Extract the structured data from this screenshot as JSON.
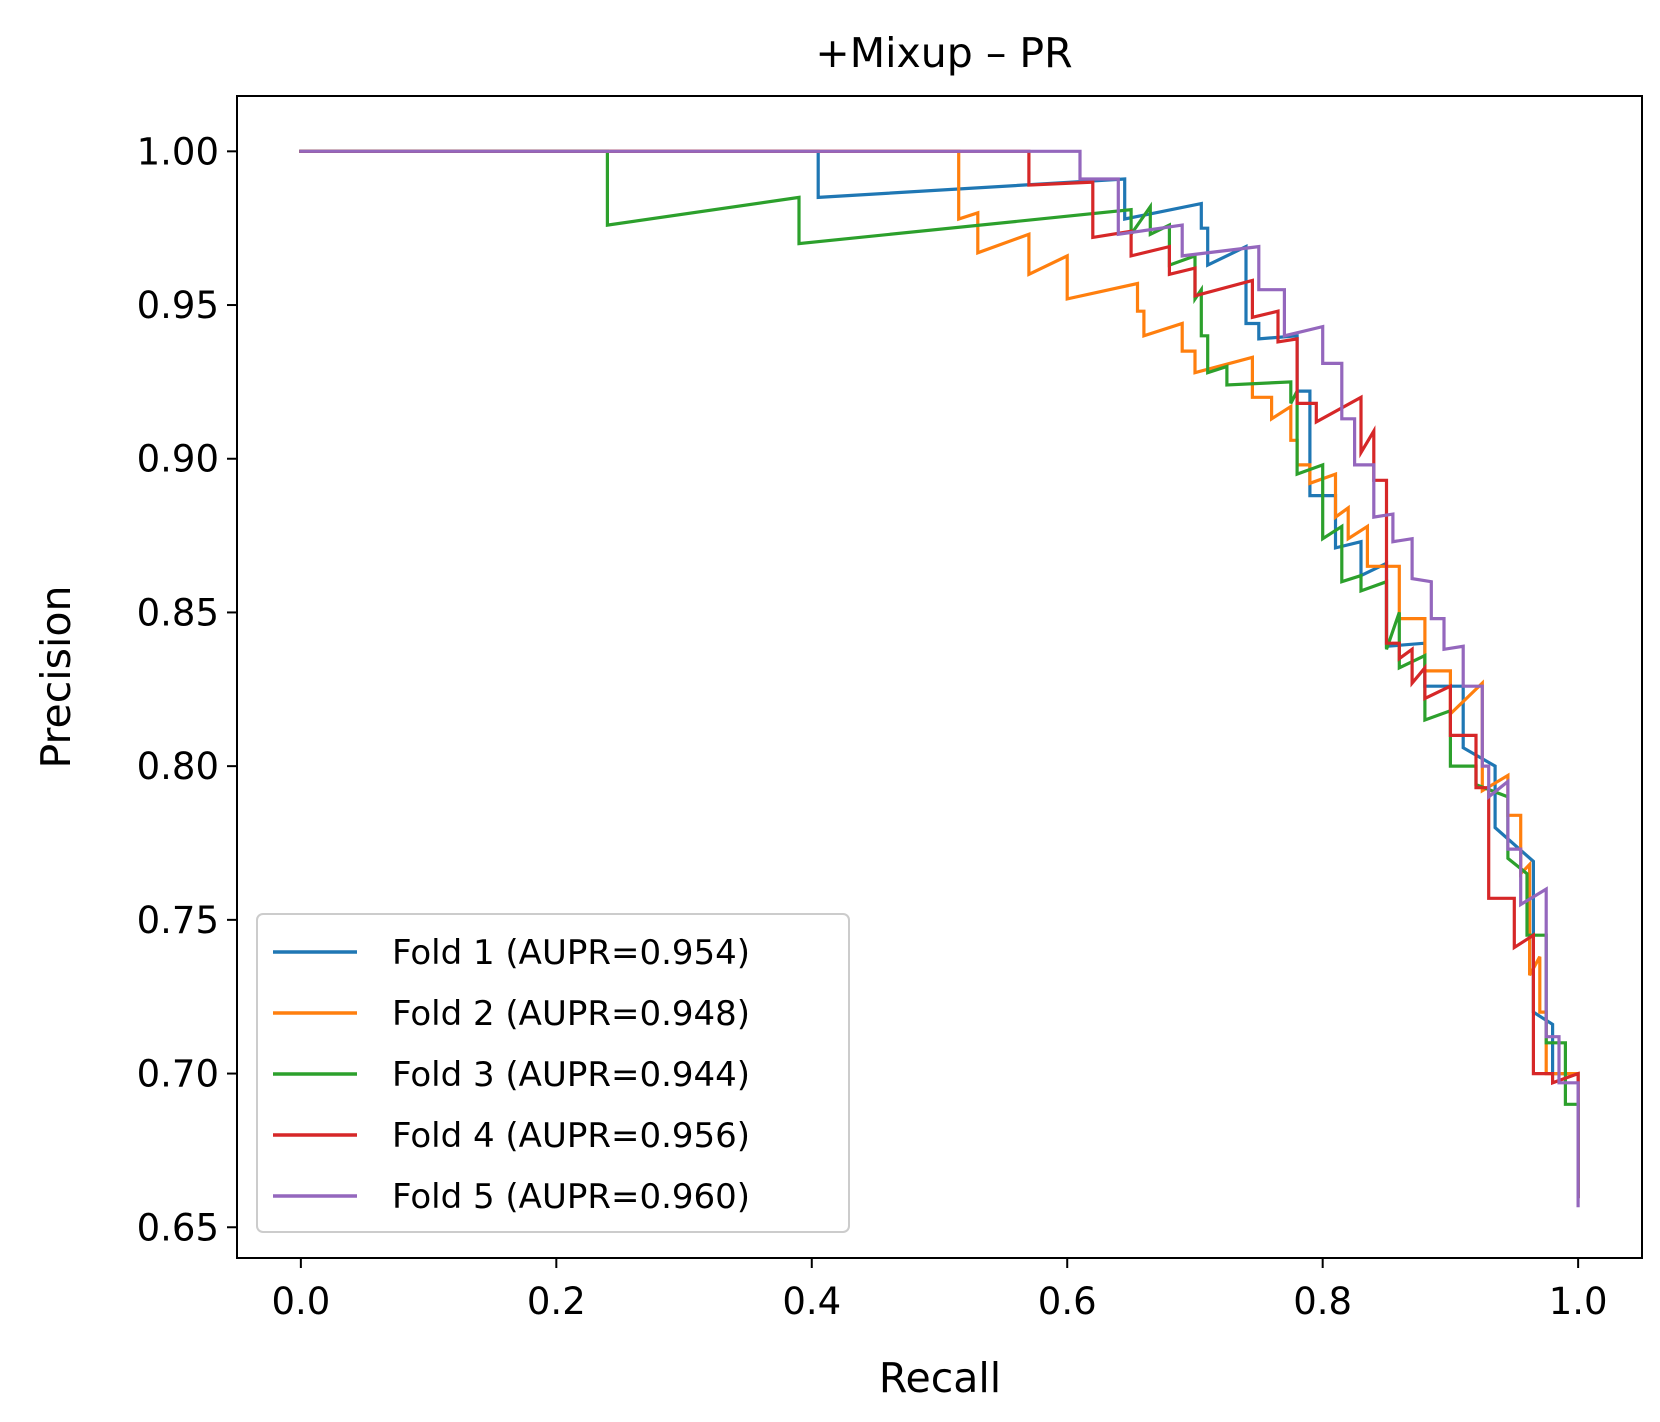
{
  "chart_data": {
    "type": "line",
    "title": "+Mixup – PR",
    "xlabel": "Recall",
    "ylabel": "Precision",
    "xlim": [
      -0.05,
      1.05
    ],
    "ylim": [
      0.64,
      1.018
    ],
    "xticks": [
      "0.0",
      "0.2",
      "0.4",
      "0.6",
      "0.8",
      "1.0"
    ],
    "yticks": [
      "0.65",
      "0.70",
      "0.75",
      "0.80",
      "0.85",
      "0.90",
      "0.95",
      "1.00"
    ],
    "grid": false,
    "legend_position": "lower-left",
    "series": [
      {
        "name": "Fold 1 (AUPR=0.954)",
        "color": "#1f77b4",
        "points": [
          [
            0,
            1.0
          ],
          [
            0.405,
            1.0
          ],
          [
            0.405,
            0.985
          ],
          [
            0.645,
            0.991
          ],
          [
            0.645,
            0.978
          ],
          [
            0.705,
            0.983
          ],
          [
            0.705,
            0.975
          ],
          [
            0.71,
            0.975
          ],
          [
            0.71,
            0.963
          ],
          [
            0.74,
            0.969
          ],
          [
            0.74,
            0.944
          ],
          [
            0.75,
            0.944
          ],
          [
            0.75,
            0.939
          ],
          [
            0.78,
            0.94
          ],
          [
            0.78,
            0.922
          ],
          [
            0.79,
            0.922
          ],
          [
            0.79,
            0.888
          ],
          [
            0.81,
            0.888
          ],
          [
            0.81,
            0.871
          ],
          [
            0.83,
            0.873
          ],
          [
            0.83,
            0.862
          ],
          [
            0.85,
            0.866
          ],
          [
            0.85,
            0.839
          ],
          [
            0.88,
            0.84
          ],
          [
            0.88,
            0.826
          ],
          [
            0.91,
            0.826
          ],
          [
            0.91,
            0.806
          ],
          [
            0.935,
            0.8
          ],
          [
            0.935,
            0.78
          ],
          [
            0.965,
            0.769
          ],
          [
            0.965,
            0.72
          ],
          [
            0.98,
            0.716
          ],
          [
            0.98,
            0.7
          ],
          [
            1.0,
            0.7
          ],
          [
            1.0,
            0.66
          ]
        ]
      },
      {
        "name": "Fold 2 (AUPR=0.948)",
        "color": "#ff7f0e",
        "points": [
          [
            0,
            1.0
          ],
          [
            0.515,
            1.0
          ],
          [
            0.515,
            0.978
          ],
          [
            0.53,
            0.98
          ],
          [
            0.53,
            0.967
          ],
          [
            0.57,
            0.973
          ],
          [
            0.57,
            0.96
          ],
          [
            0.6,
            0.966
          ],
          [
            0.6,
            0.952
          ],
          [
            0.655,
            0.957
          ],
          [
            0.655,
            0.948
          ],
          [
            0.66,
            0.948
          ],
          [
            0.66,
            0.94
          ],
          [
            0.69,
            0.944
          ],
          [
            0.69,
            0.935
          ],
          [
            0.7,
            0.935
          ],
          [
            0.7,
            0.928
          ],
          [
            0.745,
            0.933
          ],
          [
            0.745,
            0.92
          ],
          [
            0.76,
            0.92
          ],
          [
            0.76,
            0.913
          ],
          [
            0.775,
            0.917
          ],
          [
            0.775,
            0.906
          ],
          [
            0.78,
            0.906
          ],
          [
            0.78,
            0.898
          ],
          [
            0.79,
            0.898
          ],
          [
            0.79,
            0.892
          ],
          [
            0.81,
            0.895
          ],
          [
            0.81,
            0.881
          ],
          [
            0.82,
            0.884
          ],
          [
            0.82,
            0.874
          ],
          [
            0.835,
            0.878
          ],
          [
            0.835,
            0.865
          ],
          [
            0.86,
            0.865
          ],
          [
            0.86,
            0.848
          ],
          [
            0.88,
            0.848
          ],
          [
            0.88,
            0.831
          ],
          [
            0.9,
            0.831
          ],
          [
            0.9,
            0.817
          ],
          [
            0.925,
            0.827
          ],
          [
            0.925,
            0.792
          ],
          [
            0.945,
            0.797
          ],
          [
            0.945,
            0.784
          ],
          [
            0.955,
            0.784
          ],
          [
            0.955,
            0.765
          ],
          [
            0.962,
            0.768
          ],
          [
            0.962,
            0.732
          ],
          [
            0.97,
            0.738
          ],
          [
            0.97,
            0.72
          ],
          [
            0.975,
            0.72
          ],
          [
            0.975,
            0.7
          ],
          [
            1.0,
            0.7
          ],
          [
            1.0,
            0.66
          ]
        ]
      },
      {
        "name": "Fold 3 (AUPR=0.944)",
        "color": "#2ca02c",
        "points": [
          [
            0,
            1.0
          ],
          [
            0.24,
            1.0
          ],
          [
            0.24,
            0.976
          ],
          [
            0.39,
            0.985
          ],
          [
            0.39,
            0.97
          ],
          [
            0.65,
            0.981
          ],
          [
            0.65,
            0.973
          ],
          [
            0.665,
            0.982
          ],
          [
            0.665,
            0.973
          ],
          [
            0.68,
            0.976
          ],
          [
            0.68,
            0.963
          ],
          [
            0.7,
            0.966
          ],
          [
            0.7,
            0.952
          ],
          [
            0.705,
            0.955
          ],
          [
            0.705,
            0.94
          ],
          [
            0.71,
            0.94
          ],
          [
            0.71,
            0.928
          ],
          [
            0.725,
            0.93
          ],
          [
            0.725,
            0.924
          ],
          [
            0.775,
            0.925
          ],
          [
            0.775,
            0.918
          ],
          [
            0.78,
            0.922
          ],
          [
            0.78,
            0.895
          ],
          [
            0.8,
            0.898
          ],
          [
            0.8,
            0.874
          ],
          [
            0.815,
            0.878
          ],
          [
            0.815,
            0.86
          ],
          [
            0.83,
            0.862
          ],
          [
            0.83,
            0.857
          ],
          [
            0.85,
            0.86
          ],
          [
            0.85,
            0.838
          ],
          [
            0.86,
            0.85
          ],
          [
            0.86,
            0.832
          ],
          [
            0.88,
            0.836
          ],
          [
            0.88,
            0.815
          ],
          [
            0.9,
            0.818
          ],
          [
            0.9,
            0.8
          ],
          [
            0.92,
            0.8
          ],
          [
            0.92,
            0.794
          ],
          [
            0.945,
            0.79
          ],
          [
            0.945,
            0.77
          ],
          [
            0.96,
            0.765
          ],
          [
            0.96,
            0.745
          ],
          [
            0.975,
            0.745
          ],
          [
            0.975,
            0.71
          ],
          [
            0.99,
            0.71
          ],
          [
            0.99,
            0.69
          ],
          [
            1.0,
            0.69
          ],
          [
            1.0,
            0.66
          ]
        ]
      },
      {
        "name": "Fold 4 (AUPR=0.956)",
        "color": "#d62728",
        "points": [
          [
            0,
            1.0
          ],
          [
            0.57,
            1.0
          ],
          [
            0.57,
            0.989
          ],
          [
            0.62,
            0.99
          ],
          [
            0.62,
            0.972
          ],
          [
            0.65,
            0.974
          ],
          [
            0.65,
            0.966
          ],
          [
            0.68,
            0.969
          ],
          [
            0.68,
            0.96
          ],
          [
            0.7,
            0.962
          ],
          [
            0.7,
            0.953
          ],
          [
            0.745,
            0.958
          ],
          [
            0.745,
            0.946
          ],
          [
            0.765,
            0.948
          ],
          [
            0.765,
            0.938
          ],
          [
            0.78,
            0.939
          ],
          [
            0.78,
            0.918
          ],
          [
            0.795,
            0.918
          ],
          [
            0.795,
            0.912
          ],
          [
            0.83,
            0.92
          ],
          [
            0.83,
            0.902
          ],
          [
            0.84,
            0.909
          ],
          [
            0.84,
            0.893
          ],
          [
            0.85,
            0.893
          ],
          [
            0.85,
            0.84
          ],
          [
            0.86,
            0.84
          ],
          [
            0.86,
            0.835
          ],
          [
            0.87,
            0.838
          ],
          [
            0.87,
            0.827
          ],
          [
            0.88,
            0.832
          ],
          [
            0.88,
            0.822
          ],
          [
            0.9,
            0.826
          ],
          [
            0.9,
            0.81
          ],
          [
            0.92,
            0.81
          ],
          [
            0.92,
            0.793
          ],
          [
            0.93,
            0.793
          ],
          [
            0.93,
            0.757
          ],
          [
            0.95,
            0.757
          ],
          [
            0.95,
            0.741
          ],
          [
            0.965,
            0.745
          ],
          [
            0.965,
            0.7
          ],
          [
            0.98,
            0.7
          ],
          [
            0.98,
            0.697
          ],
          [
            1.0,
            0.7
          ],
          [
            1.0,
            0.66
          ]
        ]
      },
      {
        "name": "Fold 5 (AUPR=0.960)",
        "color": "#9467bd",
        "points": [
          [
            0,
            1.0
          ],
          [
            0.61,
            1.0
          ],
          [
            0.61,
            0.991
          ],
          [
            0.64,
            0.991
          ],
          [
            0.64,
            0.973
          ],
          [
            0.69,
            0.976
          ],
          [
            0.69,
            0.966
          ],
          [
            0.75,
            0.969
          ],
          [
            0.75,
            0.955
          ],
          [
            0.77,
            0.955
          ],
          [
            0.77,
            0.94
          ],
          [
            0.8,
            0.943
          ],
          [
            0.8,
            0.931
          ],
          [
            0.815,
            0.931
          ],
          [
            0.815,
            0.913
          ],
          [
            0.825,
            0.913
          ],
          [
            0.825,
            0.898
          ],
          [
            0.84,
            0.898
          ],
          [
            0.84,
            0.881
          ],
          [
            0.855,
            0.882
          ],
          [
            0.855,
            0.873
          ],
          [
            0.87,
            0.874
          ],
          [
            0.87,
            0.861
          ],
          [
            0.885,
            0.86
          ],
          [
            0.885,
            0.848
          ],
          [
            0.895,
            0.848
          ],
          [
            0.895,
            0.838
          ],
          [
            0.91,
            0.839
          ],
          [
            0.91,
            0.826
          ],
          [
            0.925,
            0.826
          ],
          [
            0.925,
            0.8
          ],
          [
            0.93,
            0.8
          ],
          [
            0.93,
            0.79
          ],
          [
            0.945,
            0.795
          ],
          [
            0.945,
            0.773
          ],
          [
            0.955,
            0.773
          ],
          [
            0.955,
            0.755
          ],
          [
            0.975,
            0.76
          ],
          [
            0.975,
            0.712
          ],
          [
            0.985,
            0.712
          ],
          [
            0.985,
            0.697
          ],
          [
            1.0,
            0.697
          ],
          [
            1.0,
            0.657
          ]
        ]
      }
    ]
  }
}
